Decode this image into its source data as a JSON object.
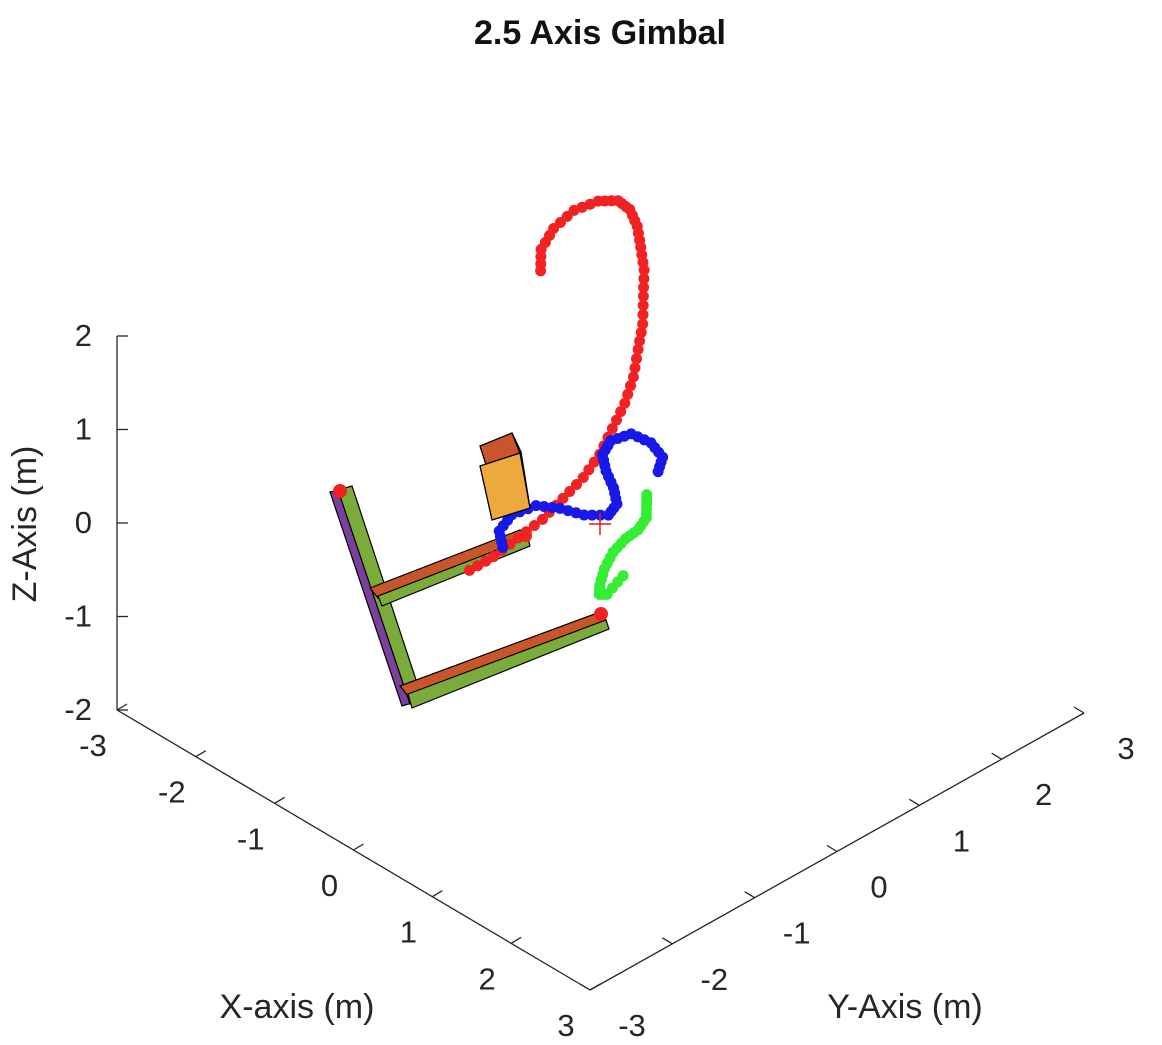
{
  "chart_data": {
    "type": "scatter3d",
    "title": "2.5 Axis Gimbal",
    "xlabel": "X-axis (m)",
    "ylabel": "Y-Axis (m)",
    "zlabel": "Z-Axis (m)",
    "xlim": [
      -3,
      3
    ],
    "ylim": [
      -3,
      3
    ],
    "zlim": [
      -2,
      2
    ],
    "x_ticks": [
      "-3",
      "-2",
      "-1",
      "0",
      "1",
      "2",
      "3"
    ],
    "y_ticks": [
      "-3",
      "-2",
      "-1",
      "0",
      "1",
      "2",
      "3"
    ],
    "z_ticks": [
      "-2",
      "-1",
      "0",
      "1",
      "2"
    ],
    "grid": false,
    "colors": {
      "red_trace": "#f22222",
      "blue_trace": "#1818e8",
      "green_trace": "#33ee33",
      "target_marker": "#e02020",
      "arm_green": "#7bab3a",
      "arm_orange": "#c9562a",
      "arm_purple": "#7b3f9e",
      "box_front": "#eda83e",
      "box_top": "#c9562a",
      "box_side": "#7db8e8"
    },
    "series": [
      {
        "color_key": "red_trace",
        "points": [
          [
            -0.2,
            -1.4,
            0.1
          ],
          [
            -0.1,
            -1.2,
            0.2
          ],
          [
            0.0,
            -1.0,
            0.35
          ],
          [
            0.1,
            -0.8,
            0.5
          ],
          [
            0.15,
            -0.6,
            0.65
          ],
          [
            0.2,
            -0.4,
            0.8
          ],
          [
            0.2,
            -0.2,
            0.95
          ],
          [
            0.15,
            0.0,
            1.1
          ],
          [
            0.1,
            0.2,
            1.25
          ],
          [
            0.0,
            0.4,
            1.38
          ],
          [
            -0.15,
            0.6,
            1.5
          ],
          [
            -0.3,
            0.8,
            1.6
          ],
          [
            -0.5,
            1.0,
            1.7
          ],
          [
            -0.7,
            1.2,
            1.78
          ],
          [
            -0.9,
            1.35,
            1.85
          ],
          [
            -1.1,
            1.5,
            1.9
          ],
          [
            -1.3,
            1.6,
            1.93
          ],
          [
            -1.5,
            1.65,
            1.9
          ],
          [
            -1.7,
            1.6,
            1.82
          ],
          [
            -1.85,
            1.45,
            1.72
          ],
          [
            -1.9,
            1.25,
            1.6
          ],
          [
            -1.85,
            1.05,
            1.5
          ],
          [
            -1.7,
            0.9,
            1.42
          ]
        ]
      },
      {
        "color_key": "blue_trace",
        "points": [
          [
            -0.3,
            -0.9,
            0.05
          ],
          [
            -0.45,
            -0.8,
            0.1
          ],
          [
            -0.5,
            -0.6,
            0.15
          ],
          [
            -0.4,
            -0.4,
            0.2
          ],
          [
            -0.2,
            -0.3,
            0.22
          ],
          [
            0.0,
            -0.2,
            0.2
          ],
          [
            0.1,
            0.0,
            0.15
          ],
          [
            0.0,
            0.2,
            0.12
          ],
          [
            -0.2,
            0.35,
            0.12
          ],
          [
            -0.4,
            0.45,
            0.15
          ],
          [
            -0.55,
            0.55,
            0.2
          ],
          [
            -0.6,
            0.7,
            0.25
          ],
          [
            -0.5,
            0.85,
            0.3
          ],
          [
            -0.3,
            0.9,
            0.28
          ],
          [
            -0.1,
            0.85,
            0.25
          ],
          [
            0.0,
            0.7,
            0.22
          ]
        ]
      },
      {
        "color_key": "green_trace",
        "points": [
          [
            0.6,
            -0.3,
            -0.1
          ],
          [
            0.5,
            -0.4,
            -0.3
          ],
          [
            0.35,
            -0.35,
            -0.4
          ],
          [
            0.2,
            -0.2,
            -0.45
          ],
          [
            0.05,
            0.0,
            -0.45
          ],
          [
            -0.05,
            0.2,
            -0.42
          ],
          [
            -0.1,
            0.4,
            -0.4
          ],
          [
            -0.1,
            0.55,
            -0.38
          ],
          [
            -0.15,
            0.7,
            -0.35
          ],
          [
            -0.25,
            0.8,
            -0.3
          ],
          [
            -0.3,
            0.85,
            -0.25
          ]
        ]
      }
    ],
    "target_marker": [
      0.0,
      0.0,
      -0.3
    ]
  }
}
